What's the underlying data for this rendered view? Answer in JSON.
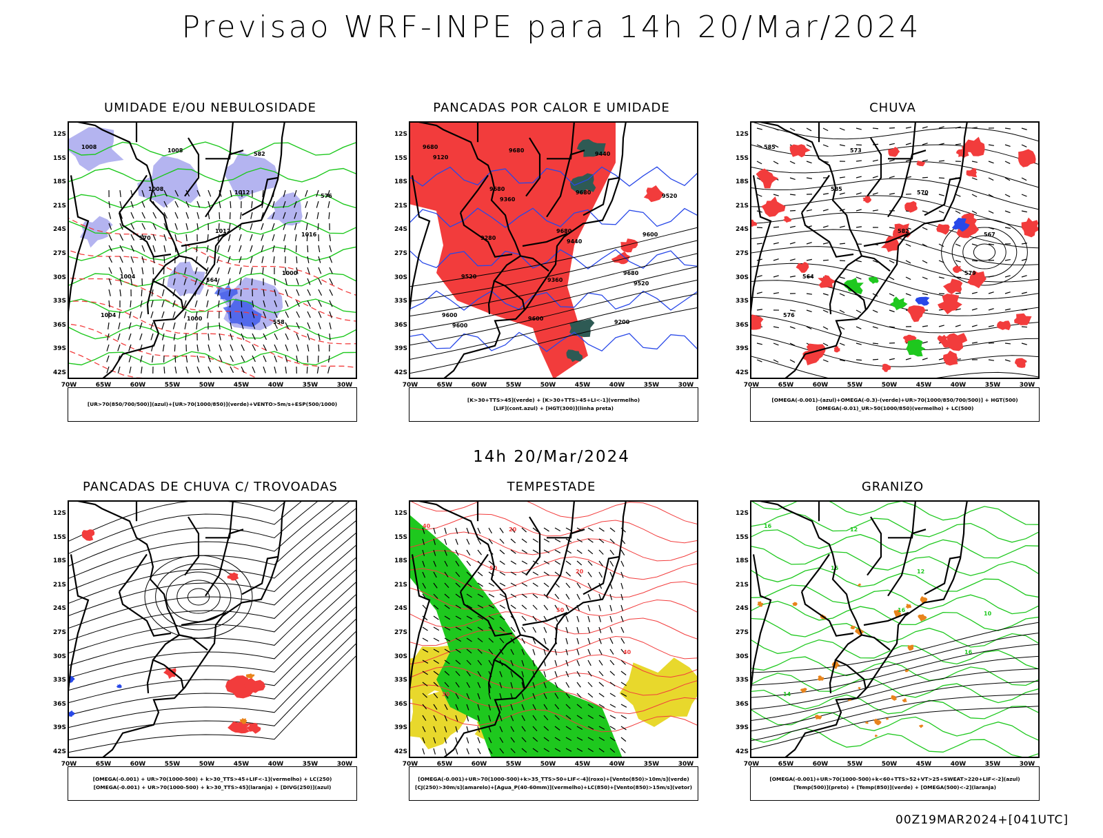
{
  "title": "Previsao WRF-INPE  para 14h 20/Mar/2024",
  "subtitle": "14h 20/Mar/2024",
  "footer": "00Z19MAR2024+[041UTC]",
  "axes": {
    "lat_ticks": [
      "12S",
      "15S",
      "18S",
      "21S",
      "24S",
      "27S",
      "30S",
      "33S",
      "36S",
      "39S",
      "42S"
    ],
    "lon_ticks": [
      "70W",
      "65W",
      "60W",
      "55W",
      "50W",
      "45W",
      "40W",
      "35W",
      "30W"
    ]
  },
  "colors": {
    "red": "#f23c3c",
    "green": "#1ec81e",
    "blue": "#2848e8",
    "lavender": "#b4b4f0",
    "yellow": "#e8d82c",
    "darkteal": "#2e5a54",
    "orange": "#e8841c"
  },
  "panels": [
    {
      "title": "UMIDADE E/OU NEBULOSIDADE",
      "legend": [
        "[UR>70(850/700/500)](azul)+[UR>70(1000/850)](verde)+VENTO>5m/s+ESP(500/1000)"
      ],
      "labels": [
        "1008",
        "1008",
        "1012",
        "1000",
        "1004",
        "1008",
        "1012",
        "1016",
        "1004",
        "1000",
        "582",
        "576",
        "570",
        "564",
        "558"
      ]
    },
    {
      "title": "PANCADAS POR CALOR E UMIDADE",
      "legend": [
        "[K>30+TTS>45](verde) + [K>30+TTS>45+LI<-1](vermelho)",
        "[LIF](cont.azul) + [HGT(300)](linha preta)"
      ],
      "labels": [
        "9680",
        "9680",
        "9680",
        "9680",
        "9600",
        "9680",
        "9680",
        "9600",
        "9520",
        "9600",
        "9440",
        "9520",
        "9280",
        "9360",
        "9200",
        "9120",
        "9360",
        "9440",
        "9520",
        "9600"
      ]
    },
    {
      "title": "CHUVA",
      "legend": [
        "[OMEGA(-0.001)-(azul)+OMEGA(-0.3)-(verde)+UR>70(1000/850/700/500)] + HGT(500)",
        "[OMEGA(-0.01)_UR>50(1000/850)(vermelho) + LC(500)"
      ],
      "labels": [
        "585",
        "585",
        "582",
        "579",
        "576",
        "573",
        "570",
        "567",
        "564"
      ]
    },
    {
      "title": "PANCADAS DE CHUVA C/ TROVOADAS",
      "legend": [
        "[OMEGA(-0.001) + UR>70(1000-500) + k>30_TTS>45+LIF<-1](vermelho) + LC(250)",
        "[OMEGA(-0.001) + UR>70(1000-500) + k>30_TTS>45](laranja) + [DIVG(250)](azul)"
      ],
      "labels": []
    },
    {
      "title": "TEMPESTADE",
      "legend": [
        "[OMEGA(-0.001)+UR>70(1000-500)+k>35_TTS>50+LIF<-4](roxo)+[Vento(850)>10m/s](verde)",
        "[CJ(250)>30m/s](amarelo)+[Agua_P(40-60mm)](vermelho)+LC(850)+[Vento(850)>15m/s](vetor)"
      ],
      "labels": [
        "40",
        "50",
        "50",
        "40",
        "30",
        "20",
        "20"
      ]
    },
    {
      "title": "GRANIZO",
      "legend": [
        "[OMEGA(-0.001)+UR>70(1000-500)+k<60+TTS>52+VT>25+SWEAT>220+LIF<-2](azul)",
        "[Temp(500)](preto) + [Temp(850)](verde) + [OMEGA(500)<-2](laranja)"
      ],
      "labels": [
        "16",
        "16",
        "16",
        "16",
        "14",
        "12",
        "12",
        "10"
      ]
    }
  ]
}
